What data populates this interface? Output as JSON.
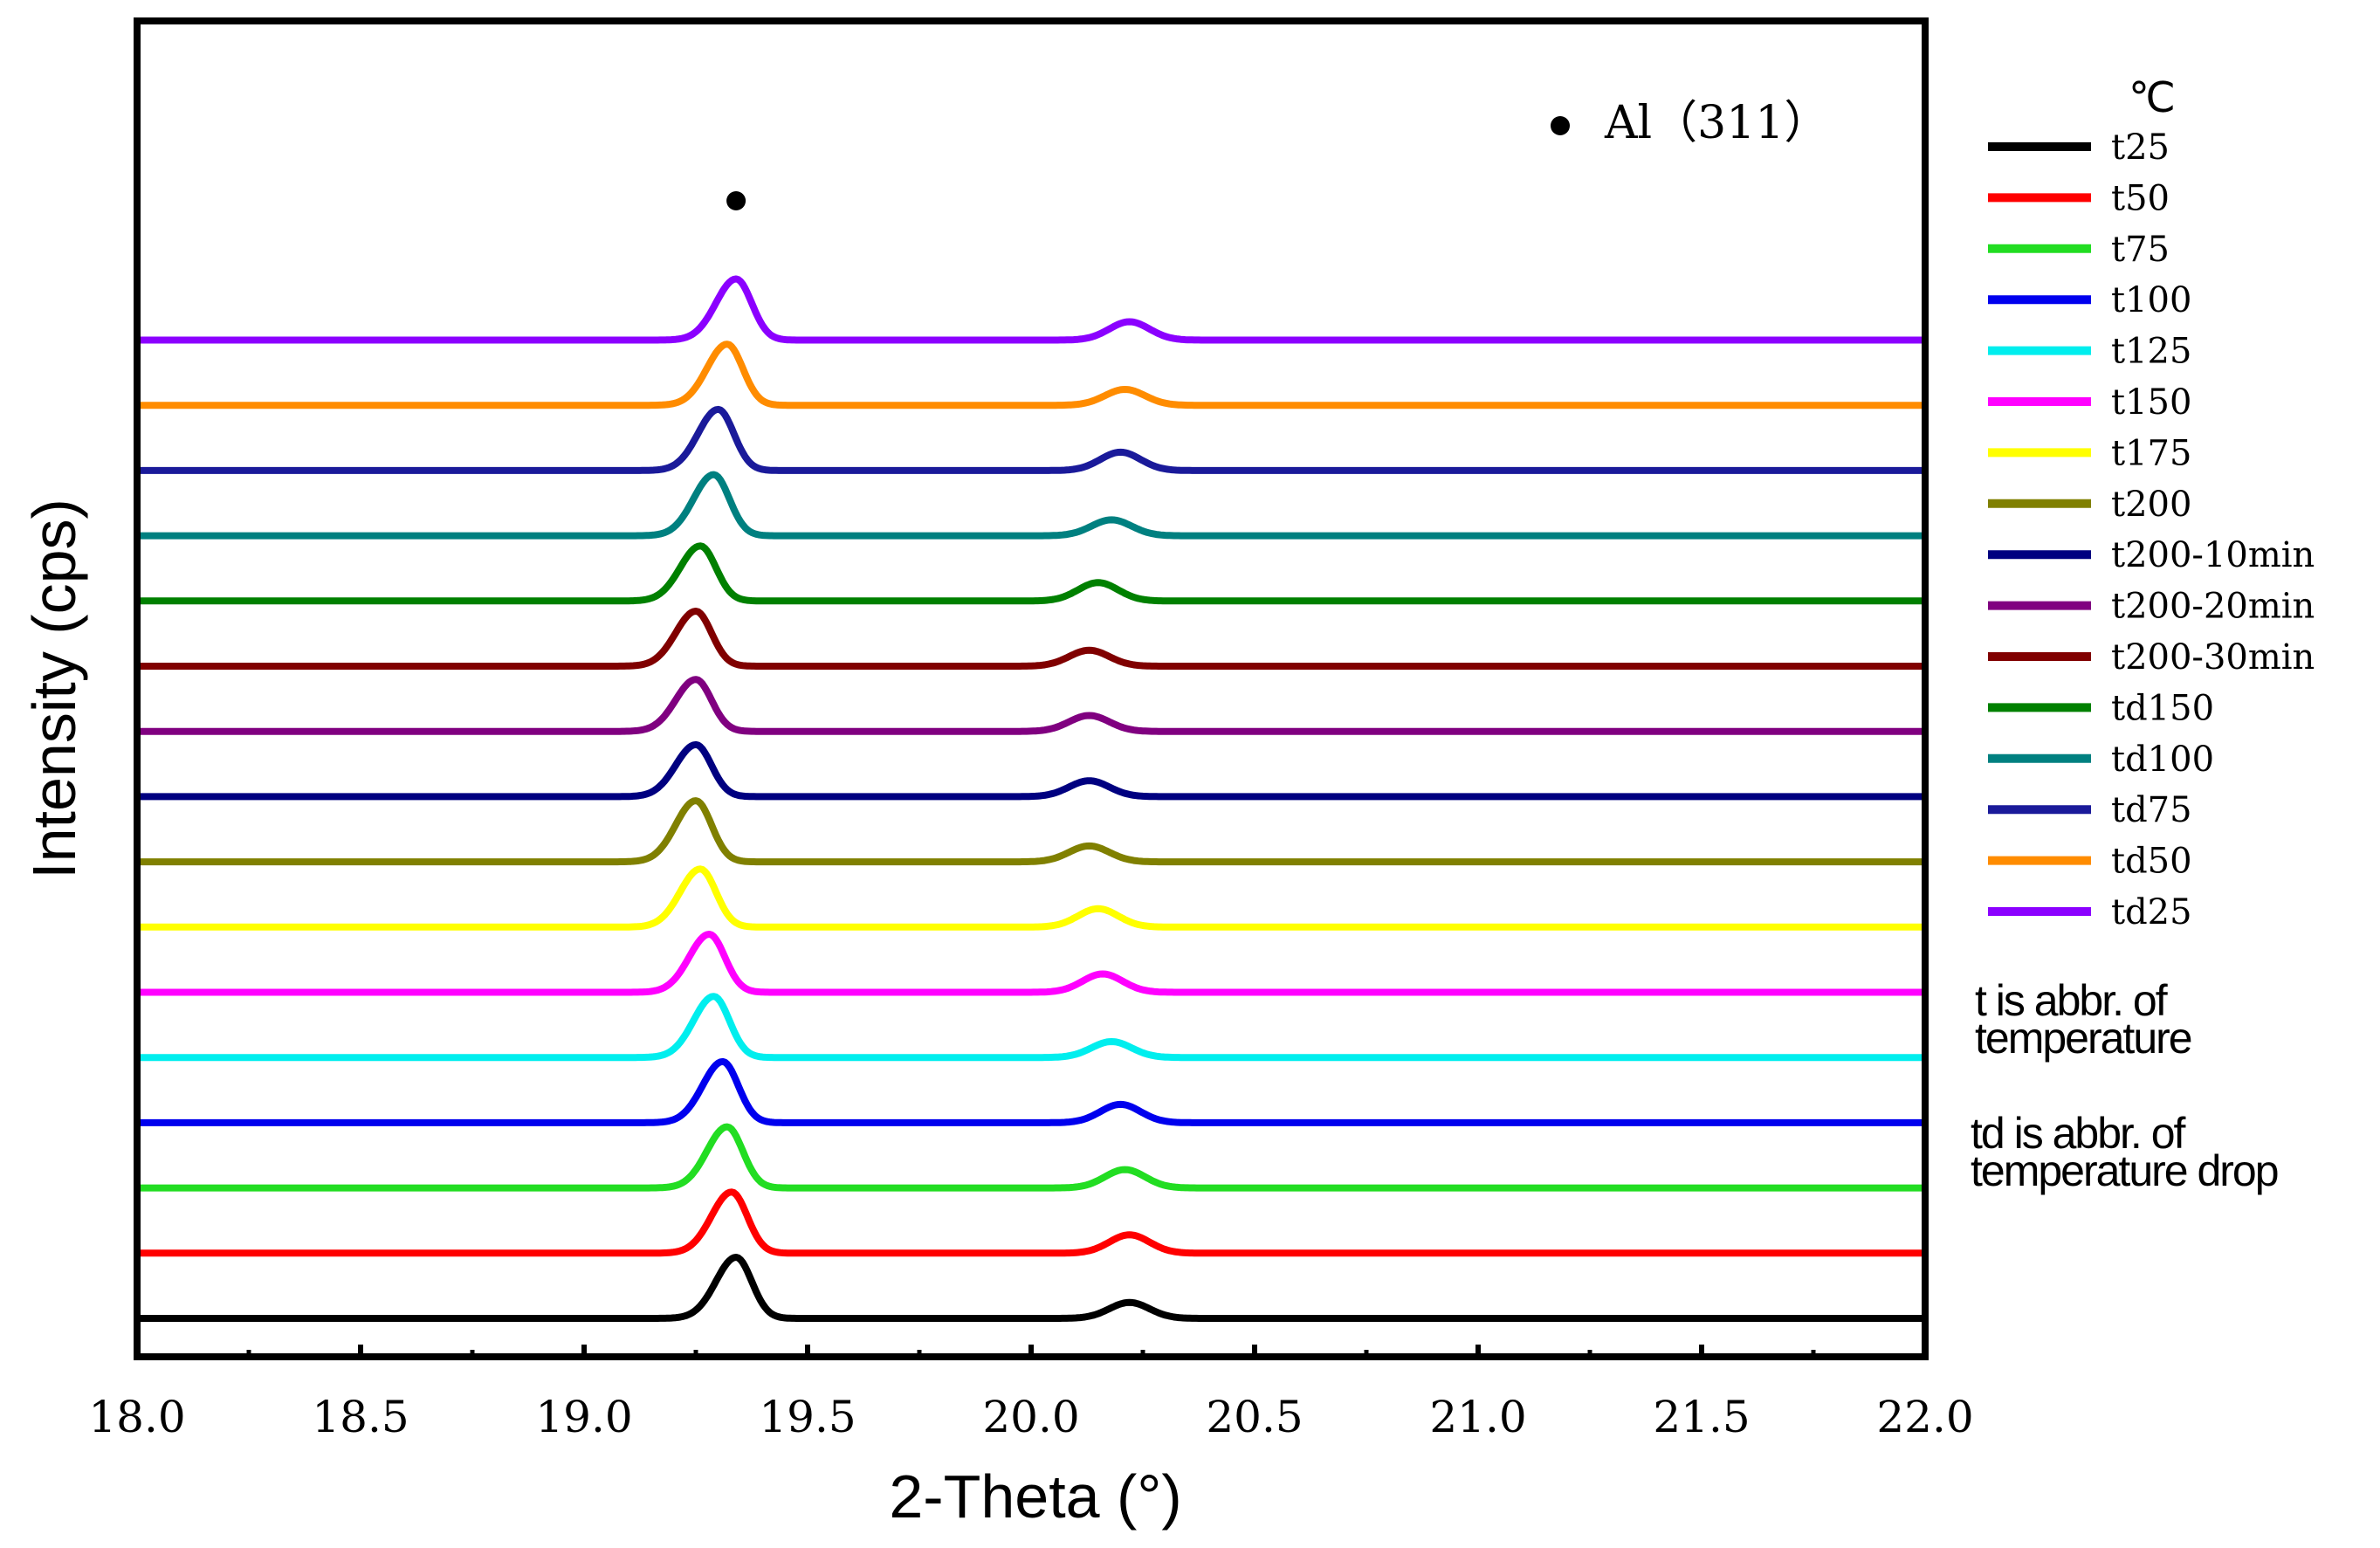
{
  "chart_data": {
    "type": "line",
    "title": "",
    "xlabel": "2-Theta (°)",
    "ylabel": "Intensity (cps)",
    "xlim": [
      18.0,
      22.0
    ],
    "xticks": [
      "18.0",
      "18.5",
      "19.0",
      "19.5",
      "20.0",
      "20.5",
      "21.0",
      "21.5",
      "22.0"
    ],
    "xtick_values": [
      18.0,
      18.5,
      19.0,
      19.5,
      20.0,
      20.5,
      21.0,
      21.5,
      22.0
    ],
    "layout_note": "curves stacked vertically with constant offset, t25 at bottom",
    "legend_unit": "℃",
    "legend_position": "right",
    "peak_marker": {
      "symbol": "●",
      "label": "Al（311）",
      "x": 19.34
    },
    "notes": [
      [
        "t is abbr. of",
        "temperature"
      ],
      [
        "td is abbr. of",
        "temperature drop"
      ]
    ],
    "series": [
      {
        "name": "t25",
        "color": "#000000",
        "peak1_x": 19.34,
        "peak1_h": 1.0,
        "peak2_x": 20.22,
        "peak2_h": 0.26
      },
      {
        "name": "t50",
        "color": "#ff0000",
        "peak1_x": 19.33,
        "peak1_h": 1.0,
        "peak2_x": 20.22,
        "peak2_h": 0.3
      },
      {
        "name": "t75",
        "color": "#22dd22",
        "peak1_x": 19.32,
        "peak1_h": 1.0,
        "peak2_x": 20.21,
        "peak2_h": 0.3
      },
      {
        "name": "t100",
        "color": "#0000ee",
        "peak1_x": 19.31,
        "peak1_h": 1.0,
        "peak2_x": 20.2,
        "peak2_h": 0.3
      },
      {
        "name": "t125",
        "color": "#00eeee",
        "peak1_x": 19.29,
        "peak1_h": 1.0,
        "peak2_x": 20.18,
        "peak2_h": 0.26
      },
      {
        "name": "t150",
        "color": "#ff00ff",
        "peak1_x": 19.28,
        "peak1_h": 0.95,
        "peak2_x": 20.16,
        "peak2_h": 0.3
      },
      {
        "name": "t175",
        "color": "#ffff00",
        "peak1_x": 19.26,
        "peak1_h": 0.95,
        "peak2_x": 20.15,
        "peak2_h": 0.3
      },
      {
        "name": "t200",
        "color": "#808000",
        "peak1_x": 19.25,
        "peak1_h": 1.0,
        "peak2_x": 20.13,
        "peak2_h": 0.26
      },
      {
        "name": "t200-10min",
        "color": "#000080",
        "peak1_x": 19.25,
        "peak1_h": 0.85,
        "peak2_x": 20.13,
        "peak2_h": 0.26
      },
      {
        "name": "t200-20min",
        "color": "#800080",
        "peak1_x": 19.25,
        "peak1_h": 0.85,
        "peak2_x": 20.13,
        "peak2_h": 0.26
      },
      {
        "name": "t200-30min",
        "color": "#800000",
        "peak1_x": 19.25,
        "peak1_h": 0.9,
        "peak2_x": 20.13,
        "peak2_h": 0.26
      },
      {
        "name": "td150",
        "color": "#008000",
        "peak1_x": 19.26,
        "peak1_h": 0.9,
        "peak2_x": 20.15,
        "peak2_h": 0.3
      },
      {
        "name": "td100",
        "color": "#008080",
        "peak1_x": 19.29,
        "peak1_h": 1.0,
        "peak2_x": 20.18,
        "peak2_h": 0.26
      },
      {
        "name": "td75",
        "color": "#1a1a9a",
        "peak1_x": 19.3,
        "peak1_h": 1.0,
        "peak2_x": 20.2,
        "peak2_h": 0.3
      },
      {
        "name": "td50",
        "color": "#ff8c00",
        "peak1_x": 19.32,
        "peak1_h": 1.0,
        "peak2_x": 20.21,
        "peak2_h": 0.26
      },
      {
        "name": "td25",
        "color": "#8b00ff",
        "peak1_x": 19.34,
        "peak1_h": 1.0,
        "peak2_x": 20.22,
        "peak2_h": 0.3
      }
    ]
  }
}
